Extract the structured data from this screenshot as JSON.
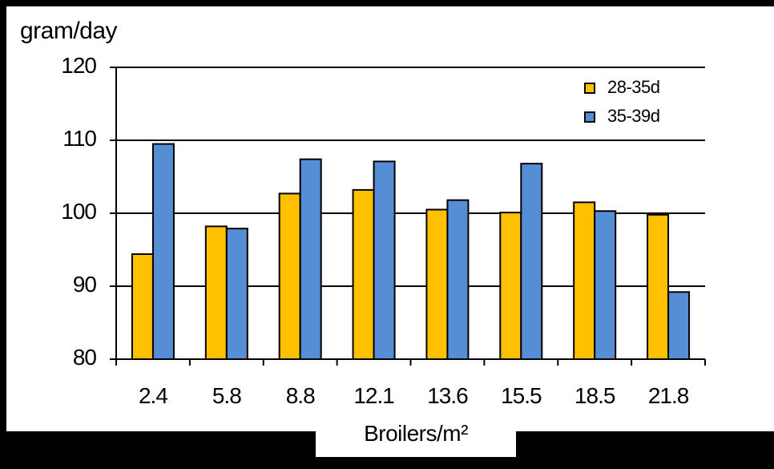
{
  "chart_data": {
    "type": "bar",
    "title": "",
    "ylabel": "gram/day",
    "xlabel": "Broilers/m²",
    "ylim": [
      80,
      120
    ],
    "yticks": [
      80,
      90,
      100,
      110,
      120
    ],
    "grid": true,
    "legend_position": "top-right",
    "categories": [
      "2.4",
      "5.8",
      "8.8",
      "12.1",
      "13.6",
      "15.5",
      "18.5",
      "21.8"
    ],
    "series": [
      {
        "name": "28-35d",
        "color": "#FFC000",
        "values": [
          94.4,
          98.2,
          102.7,
          103.2,
          100.5,
          100.1,
          101.5,
          99.8
        ]
      },
      {
        "name": "35-39d",
        "color": "#558ED5",
        "values": [
          109.5,
          97.9,
          107.4,
          107.1,
          101.8,
          106.8,
          100.3,
          89.2
        ]
      }
    ]
  }
}
